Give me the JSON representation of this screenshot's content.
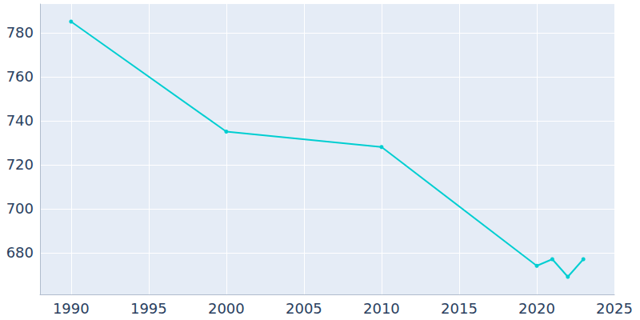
{
  "chart_data": {
    "type": "line",
    "x": [
      1990,
      2000,
      2010,
      2020,
      2021,
      2022,
      2023
    ],
    "values": [
      785,
      735,
      728,
      674,
      677,
      669,
      677
    ],
    "color": "#00ced1",
    "marker": "circle",
    "xlim": [
      1988,
      2025
    ],
    "xticks": [
      1990,
      1995,
      2000,
      2005,
      2010,
      2015,
      2020,
      2025
    ],
    "ylim": [
      661,
      793
    ],
    "yticks": [
      680,
      700,
      720,
      740,
      760,
      780
    ],
    "grid": true
  }
}
